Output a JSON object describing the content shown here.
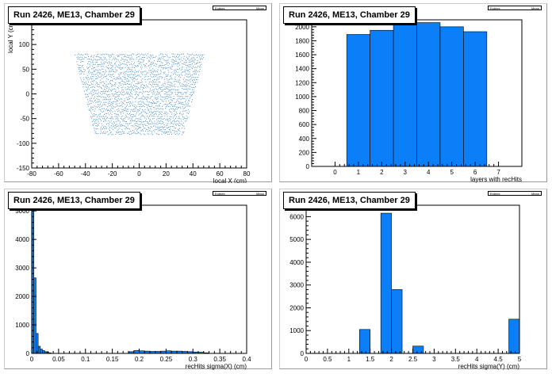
{
  "panels": [
    {
      "title": "Run 2426, ME13, Chamber 29",
      "stats": {
        "entries": "Entries",
        "mean": "Mean"
      },
      "chart_data": {
        "type": "scatter",
        "title": "Run 2426, ME13, Chamber 29",
        "xlabel": "local X (cm)",
        "ylabel": "local Y (cm)",
        "xlim": [
          -80,
          80
        ],
        "ylim": [
          -150,
          150
        ],
        "xticks": [
          -80,
          -60,
          -40,
          -20,
          0,
          20,
          40,
          60,
          80
        ],
        "yticks": [
          -150,
          -100,
          -50,
          0,
          50,
          100,
          150
        ],
        "region": {
          "y_top": 80,
          "y_bottom": -80,
          "half_width_top": 48,
          "half_width_bottom": 33
        },
        "color": "#2a7ab8"
      }
    },
    {
      "title": "Run 2426, ME13, Chamber 29",
      "stats": {
        "entries": "Entries",
        "mean": "Mean"
      },
      "chart_data": {
        "type": "bar",
        "title": "Run 2426, ME13, Chamber 29",
        "xlabel": "layers with recHits",
        "ylabel": "",
        "xlim": [
          -1,
          8
        ],
        "ylim": [
          0,
          2100
        ],
        "xticks": [
          0,
          1,
          2,
          3,
          4,
          5,
          6,
          7
        ],
        "yticks": [
          0,
          200,
          400,
          600,
          800,
          1000,
          1200,
          1400,
          1600,
          1800,
          2000
        ],
        "bins": [
          {
            "lo": 0.5,
            "hi": 1.5,
            "value": 1890
          },
          {
            "lo": 1.5,
            "hi": 2.5,
            "value": 1950
          },
          {
            "lo": 2.5,
            "hi": 3.5,
            "value": 2060
          },
          {
            "lo": 3.5,
            "hi": 4.5,
            "value": 2060
          },
          {
            "lo": 4.5,
            "hi": 5.5,
            "value": 2000
          },
          {
            "lo": 5.5,
            "hi": 6.5,
            "value": 1930
          }
        ],
        "color": "#0a7ff7"
      }
    },
    {
      "title": "Run 2426, ME13, Chamber 29",
      "stats": {
        "entries": "Entries",
        "mean": "Mean"
      },
      "chart_data": {
        "type": "bar",
        "title": "Run 2426, ME13, Chamber 29",
        "xlabel": "recHits sigma(X) (cm)",
        "ylabel": "",
        "xlim": [
          0,
          0.4
        ],
        "ylim": [
          0,
          5200
        ],
        "xticks": [
          0,
          0.05,
          0.1,
          0.15,
          0.2,
          0.25,
          0.3,
          0.35,
          0.4
        ],
        "yticks": [
          0,
          1000,
          2000,
          3000,
          4000,
          5000
        ],
        "bins": [
          {
            "lo": 0.0,
            "hi": 0.004,
            "value": 5000
          },
          {
            "lo": 0.004,
            "hi": 0.008,
            "value": 2650
          },
          {
            "lo": 0.008,
            "hi": 0.012,
            "value": 700
          },
          {
            "lo": 0.012,
            "hi": 0.016,
            "value": 250
          },
          {
            "lo": 0.016,
            "hi": 0.02,
            "value": 150
          },
          {
            "lo": 0.02,
            "hi": 0.024,
            "value": 100
          },
          {
            "lo": 0.024,
            "hi": 0.028,
            "value": 60
          },
          {
            "lo": 0.028,
            "hi": 0.032,
            "value": 40
          },
          {
            "lo": 0.032,
            "hi": 0.036,
            "value": 20
          },
          {
            "lo": 0.18,
            "hi": 0.19,
            "value": 60
          },
          {
            "lo": 0.19,
            "hi": 0.2,
            "value": 100
          },
          {
            "lo": 0.2,
            "hi": 0.21,
            "value": 90
          },
          {
            "lo": 0.21,
            "hi": 0.22,
            "value": 80
          },
          {
            "lo": 0.22,
            "hi": 0.23,
            "value": 70
          },
          {
            "lo": 0.23,
            "hi": 0.24,
            "value": 70
          },
          {
            "lo": 0.24,
            "hi": 0.25,
            "value": 80
          },
          {
            "lo": 0.25,
            "hi": 0.26,
            "value": 90
          },
          {
            "lo": 0.26,
            "hi": 0.27,
            "value": 80
          },
          {
            "lo": 0.27,
            "hi": 0.28,
            "value": 80
          },
          {
            "lo": 0.28,
            "hi": 0.29,
            "value": 70
          },
          {
            "lo": 0.29,
            "hi": 0.3,
            "value": 60
          },
          {
            "lo": 0.3,
            "hi": 0.31,
            "value": 50
          },
          {
            "lo": 0.31,
            "hi": 0.32,
            "value": 40
          },
          {
            "lo": 0.32,
            "hi": 0.33,
            "value": 20
          }
        ],
        "color": "#0a7ff7"
      }
    },
    {
      "title": "Run 2426, ME13, Chamber 29",
      "stats": {
        "entries": "Entries",
        "mean": "Mean"
      },
      "chart_data": {
        "type": "bar",
        "title": "Run 2426, ME13, Chamber 29",
        "xlabel": "recHits sigma(Y) (cm)",
        "ylabel": "",
        "xlim": [
          0,
          5
        ],
        "ylim": [
          0,
          6500
        ],
        "xticks": [
          0,
          0.5,
          1,
          1.5,
          2,
          2.5,
          3,
          3.5,
          4,
          4.5,
          5
        ],
        "yticks": [
          0,
          1000,
          2000,
          3000,
          4000,
          5000,
          6000
        ],
        "bins": [
          {
            "lo": 1.25,
            "hi": 1.5,
            "value": 1050
          },
          {
            "lo": 1.75,
            "hi": 2.0,
            "value": 6150
          },
          {
            "lo": 2.0,
            "hi": 2.25,
            "value": 2800
          },
          {
            "lo": 2.25,
            "hi": 2.5,
            "value": 0
          },
          {
            "lo": 2.5,
            "hi": 2.75,
            "value": 320
          },
          {
            "lo": 4.75,
            "hi": 5.0,
            "value": 1500
          }
        ],
        "color": "#0a7ff7"
      }
    }
  ]
}
